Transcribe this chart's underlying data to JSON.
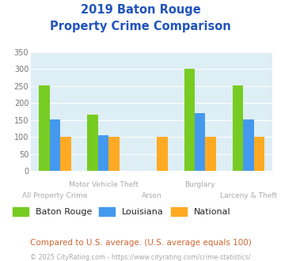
{
  "title_line1": "2019 Baton Rouge",
  "title_line2": "Property Crime Comparison",
  "categories": [
    "All Property Crime",
    "Motor Vehicle Theft",
    "Arson",
    "Burglary",
    "Larceny & Theft"
  ],
  "baton_rouge": [
    253,
    165,
    0,
    302,
    253
  ],
  "louisiana": [
    152,
    105,
    0,
    170,
    152
  ],
  "national": [
    100,
    100,
    100,
    100,
    100
  ],
  "color_br": "#77cc22",
  "color_la": "#4499ee",
  "color_nat": "#ffaa22",
  "ylim": [
    0,
    350
  ],
  "yticks": [
    0,
    50,
    100,
    150,
    200,
    250,
    300,
    350
  ],
  "plot_bg": "#ddeef5",
  "title_color": "#2255bb",
  "label_color": "#aaaaaa",
  "footnote1": "Compared to U.S. average. (U.S. average equals 100)",
  "footnote2": "© 2025 CityRating.com - https://www.cityrating.com/crime-statistics/",
  "footnote1_color": "#cc6633",
  "footnote2_color": "#aaaaaa",
  "legend_labels": [
    "Baton Rouge",
    "Louisiana",
    "National"
  ],
  "bar_width": 0.22
}
